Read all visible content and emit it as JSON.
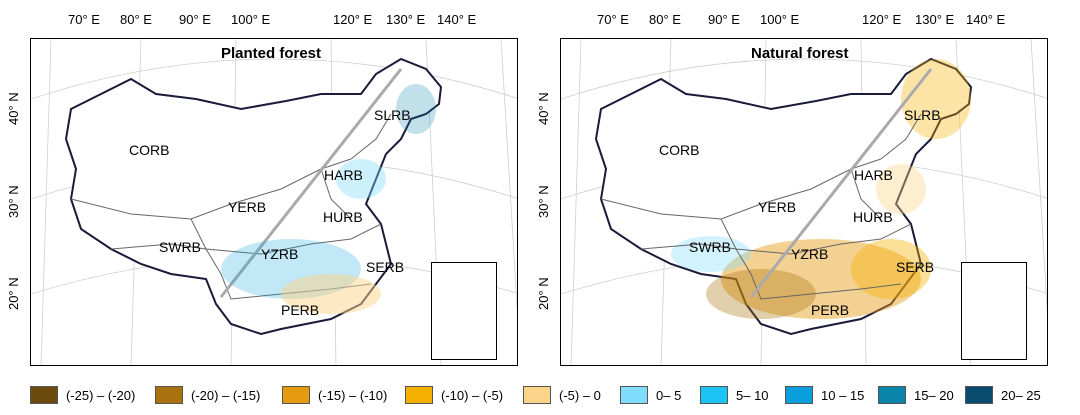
{
  "lon_labels": [
    "70° E",
    "80° E",
    "90° E",
    "100° E",
    "120° E",
    "130° E",
    "140° E"
  ],
  "lat_labels": [
    "40° N",
    "30° N",
    "20° N"
  ],
  "panels": [
    {
      "title": "Planted forest"
    },
    {
      "title": "Natural forest"
    }
  ],
  "regions": [
    "SLRB",
    "CORB",
    "HARB",
    "YERB",
    "HURB",
    "SWRB",
    "YZRB",
    "SERB",
    "PERB"
  ],
  "legend": [
    {
      "label": "(-25) – (-20)",
      "color": "#6b4a0e"
    },
    {
      "label": "(-20) – (-15)",
      "color": "#a8730e"
    },
    {
      "label": "(-15) – (-10)",
      "color": "#e59a10"
    },
    {
      "label": "(-10) – (-5)",
      "color": "#f6b100"
    },
    {
      "label": "(-5) – 0",
      "color": "#fbd48a"
    },
    {
      "label": "0– 5",
      "color": "#7fdcfb"
    },
    {
      "label": "5– 10",
      "color": "#1cc3f5"
    },
    {
      "label": "10 – 15",
      "color": "#0a9fdc"
    },
    {
      "label": "15– 20",
      "color": "#0a84a8"
    },
    {
      "label": "20– 25",
      "color": "#0a4a6e"
    }
  ]
}
